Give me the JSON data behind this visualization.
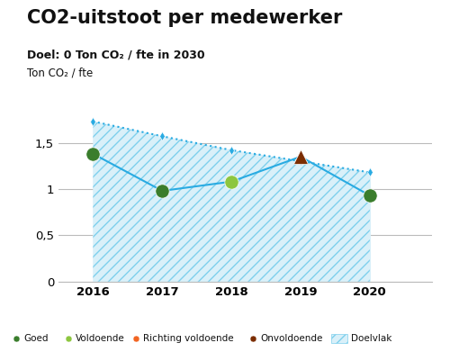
{
  "title": "CO2-uitstoot per medewerker",
  "subtitle_bold": "Doel: 0 Ton CO₂ / fte in 2030",
  "ylabel": "Ton CO₂ / fte",
  "years": [
    2016,
    2017,
    2018,
    2019,
    2020
  ],
  "actual_values": [
    1.38,
    0.98,
    1.08,
    1.35,
    0.93
  ],
  "actual_categories": [
    "Goed",
    "Goed",
    "Voldoende",
    "Onvoldoende",
    "Goed"
  ],
  "target_line": [
    1.73,
    1.57,
    1.42,
    1.3,
    1.18
  ],
  "xlim": [
    2015.5,
    2020.9
  ],
  "ylim": [
    0,
    1.95
  ],
  "yticks": [
    0,
    0.5,
    1.0,
    1.5
  ],
  "ytick_labels": [
    "0",
    "0,5",
    "1",
    "1,5"
  ],
  "color_goed": "#3a7d2c",
  "color_voldoende": "#8dc63f",
  "color_richting_voldoende": "#f26522",
  "color_onvoldoende": "#7b2d00",
  "color_target_line": "#29abe2",
  "color_doelvlak_fill": "#d9f0f9",
  "color_doelvlak_hatch": "#7fd0ed",
  "color_grid": "#bbbbbb",
  "background_color": "#ffffff",
  "title_fontsize": 15,
  "subtitle_fontsize": 9,
  "ylabel_fontsize": 8.5,
  "tick_fontsize": 9.5
}
